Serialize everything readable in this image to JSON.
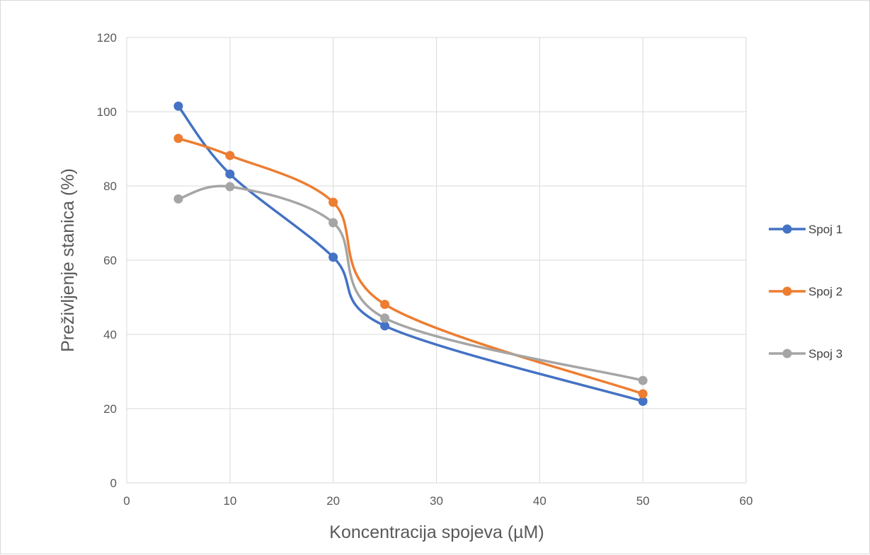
{
  "chart_data": {
    "type": "line",
    "title": "",
    "xlabel": "Koncentracija spojeva (µM)",
    "ylabel": "Preživljenje stanica (%)",
    "xlim": [
      0,
      60
    ],
    "ylim": [
      0,
      120
    ],
    "xticks": [
      0,
      10,
      20,
      30,
      40,
      50,
      60
    ],
    "yticks": [
      0,
      20,
      40,
      60,
      80,
      100,
      120
    ],
    "grid": true,
    "smooth": true,
    "legend_position": "right",
    "x": [
      5,
      10,
      20,
      25,
      50
    ],
    "series": [
      {
        "name": "Spoj 1",
        "color": "#4472c4",
        "values": [
          101.5,
          83.2,
          60.8,
          42.3,
          22.0
        ]
      },
      {
        "name": "Spoj 2",
        "color": "#ed7d31",
        "values": [
          92.8,
          88.2,
          75.6,
          48.1,
          24.0
        ]
      },
      {
        "name": "Spoj 3",
        "color": "#a5a5a5",
        "values": [
          76.5,
          79.8,
          70.1,
          44.4,
          27.6
        ]
      }
    ]
  }
}
